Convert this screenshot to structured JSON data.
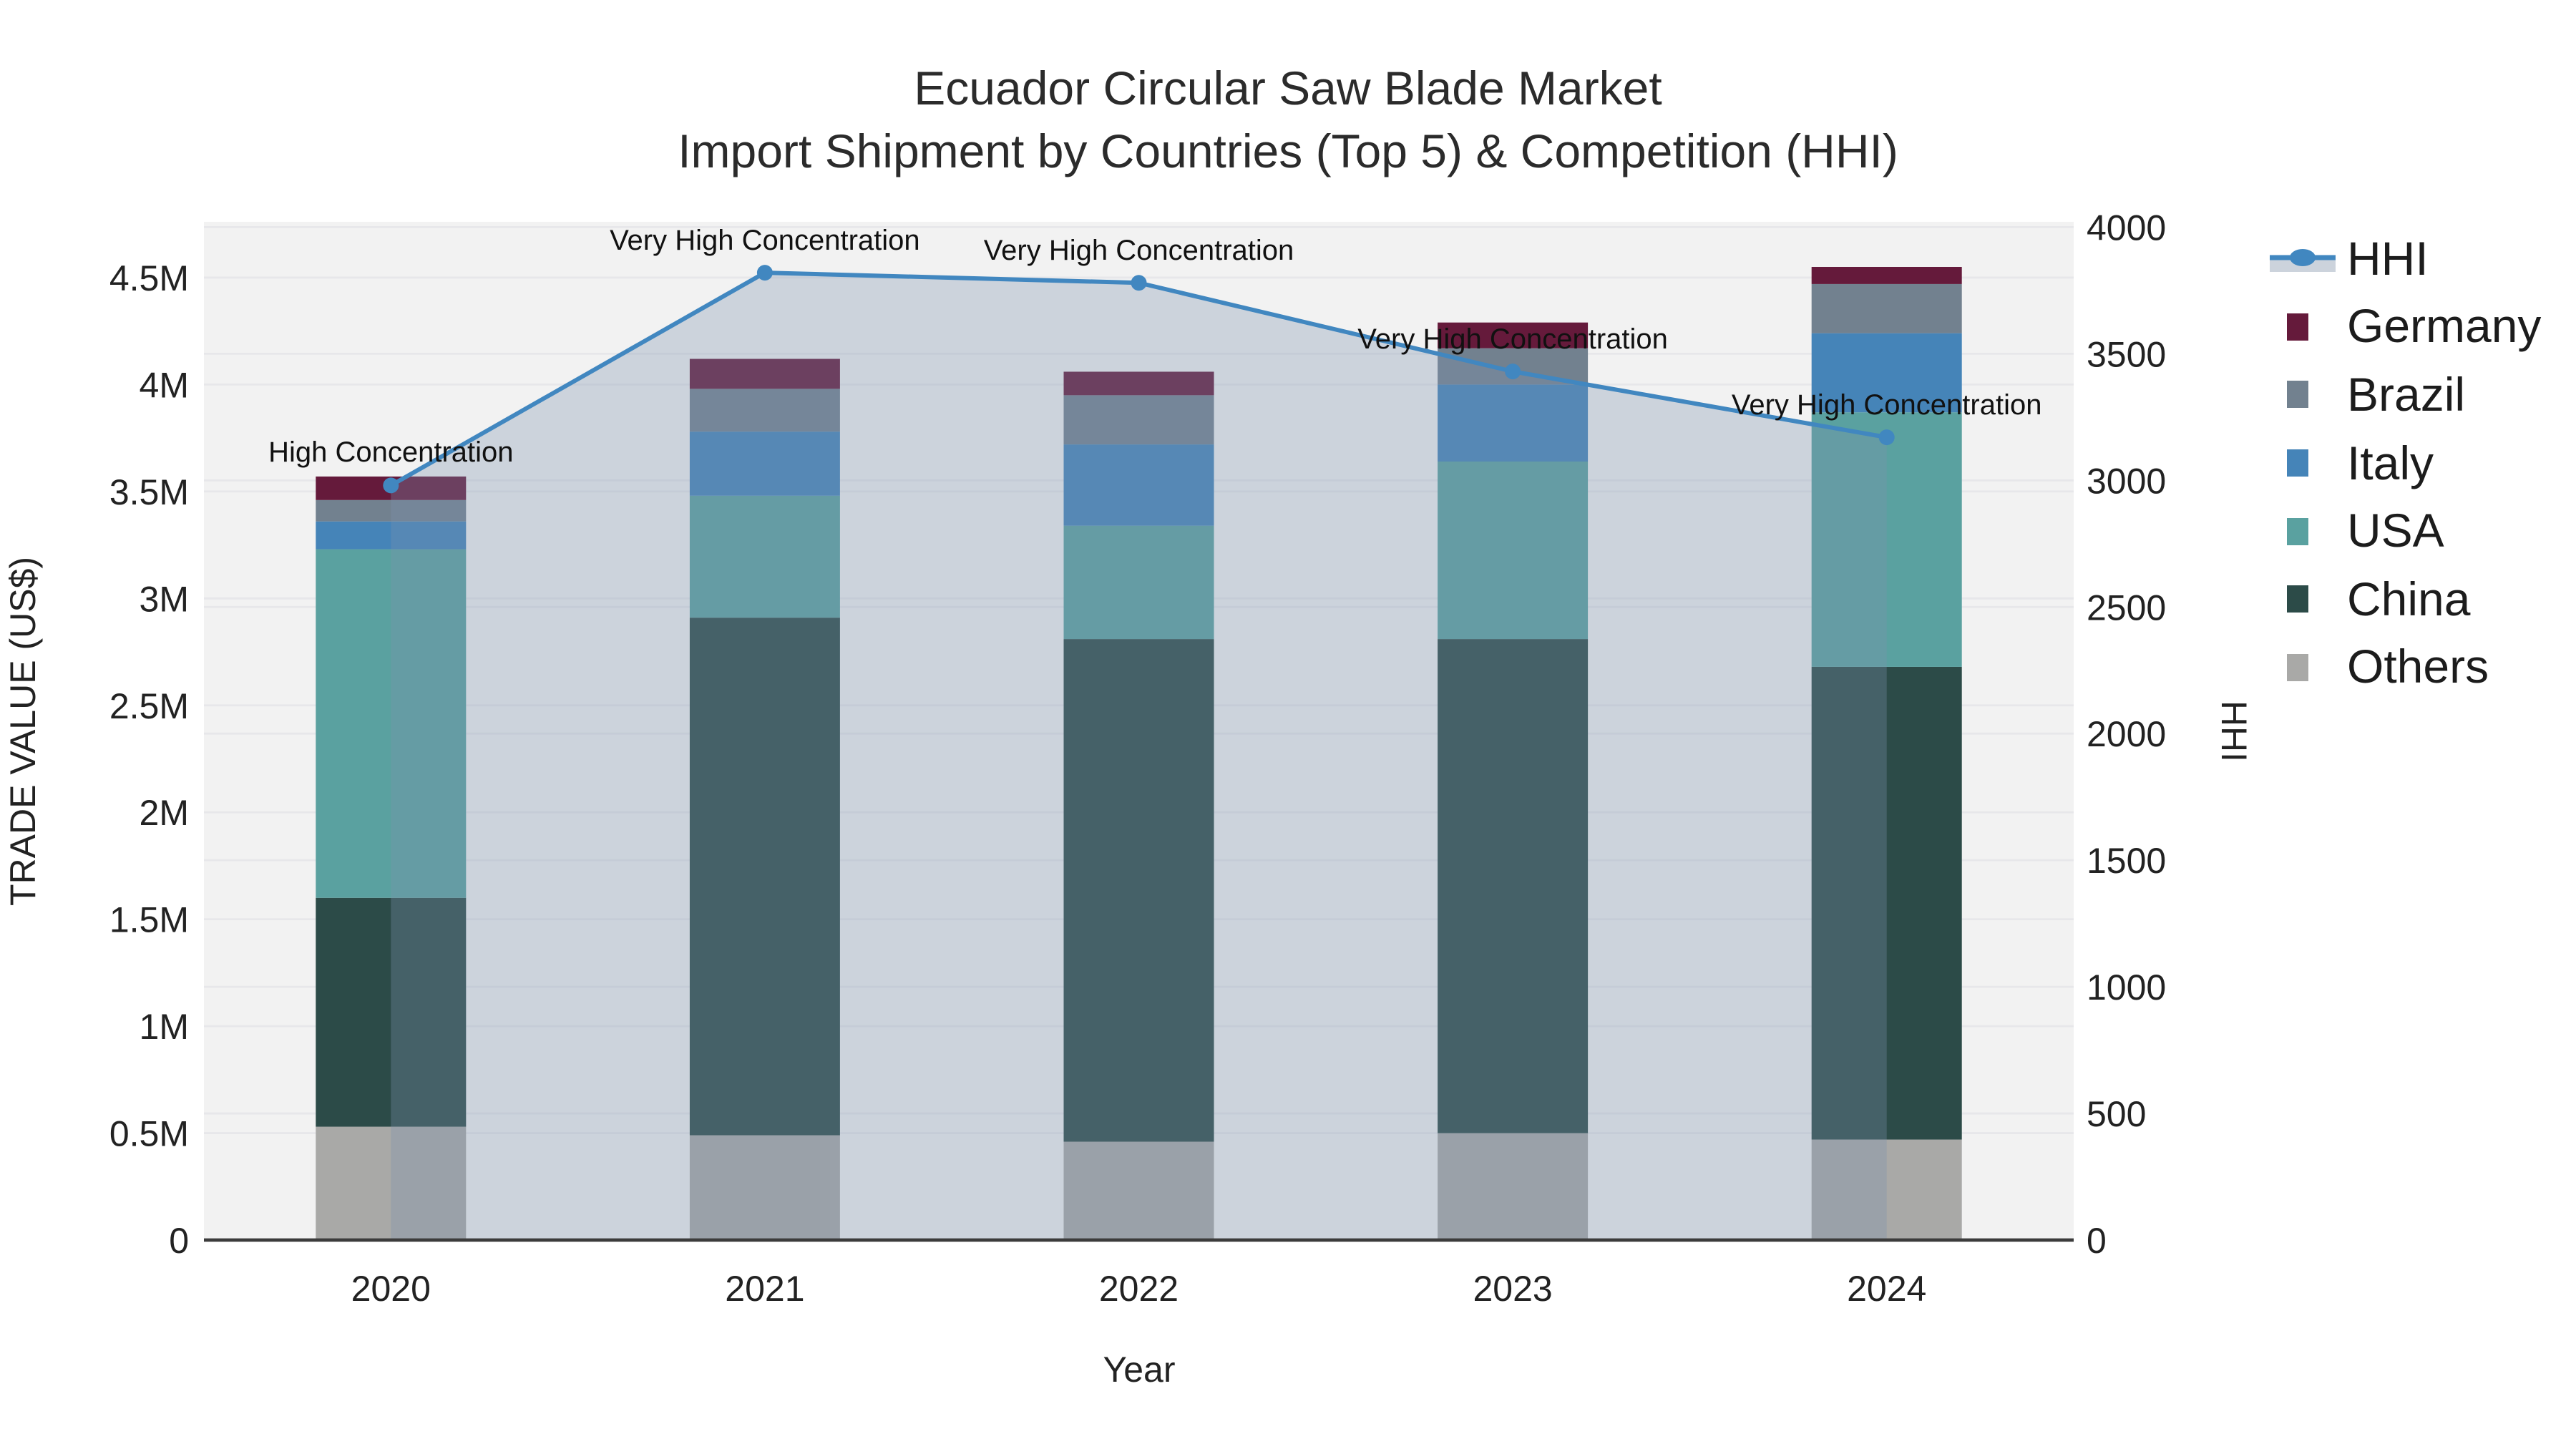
{
  "title": {
    "line1": "Ecuador Circular Saw Blade Market",
    "line2": "Import Shipment by Countries (Top 5) & Competition (HHI)"
  },
  "chart_data": {
    "type": "stacked-bar+line",
    "title": "Ecuador Circular Saw Blade Market — Import Shipment by Countries (Top 5) & Competition (HHI)",
    "x_axis": {
      "title": "Year",
      "categories": [
        "2020",
        "2021",
        "2022",
        "2023",
        "2024"
      ]
    },
    "left_axis": {
      "title": "TRADE VALUE (US$)",
      "unit": "millions of US$",
      "tick_values": [
        0,
        0.5,
        1,
        1.5,
        2,
        2.5,
        3,
        3.5,
        4,
        4.5
      ],
      "tick_labels": [
        "0",
        "0.5M",
        "1M",
        "1.5M",
        "2M",
        "2.5M",
        "3M",
        "3.5M",
        "4M",
        "4.5M"
      ],
      "range": [
        0,
        4.76
      ],
      "grid": true
    },
    "right_axis": {
      "title": "HHI",
      "tick_values": [
        0,
        500,
        1000,
        1500,
        2000,
        2500,
        3000,
        3500,
        4000
      ],
      "range": [
        0,
        4020
      ],
      "grid": true
    },
    "bar_series_bottom_to_top": [
      {
        "name": "Others",
        "color": "#a9a9a7",
        "values": [
          0.53,
          0.49,
          0.46,
          0.5,
          0.47
        ]
      },
      {
        "name": "China",
        "color": "#2c4b48",
        "values": [
          1.07,
          2.42,
          2.35,
          2.31,
          2.21
        ]
      },
      {
        "name": "USA",
        "color": "#5aa1a0",
        "values": [
          1.63,
          0.57,
          0.53,
          0.83,
          1.19
        ]
      },
      {
        "name": "Italy",
        "color": "#4584b8",
        "values": [
          0.13,
          0.3,
          0.38,
          0.36,
          0.37
        ]
      },
      {
        "name": "Brazil",
        "color": "#72818f",
        "values": [
          0.1,
          0.2,
          0.23,
          0.17,
          0.23
        ]
      },
      {
        "name": "Germany",
        "color": "#651a3b",
        "values": [
          0.11,
          0.14,
          0.11,
          0.12,
          0.08
        ]
      }
    ],
    "hhi_line": {
      "name": "HHI",
      "values": [
        2980,
        3820,
        3780,
        3430,
        3170
      ],
      "line_color": "#4187c0",
      "area_fill": "rgba(125,145,175,0.32)",
      "legend_band_color": "#ccd3dc"
    },
    "annotations": [
      {
        "year": "2020",
        "text": "High Concentration"
      },
      {
        "year": "2021",
        "text": "Very High Concentration"
      },
      {
        "year": "2022",
        "text": "Very High Concentration"
      },
      {
        "year": "2023",
        "text": "Very High Concentration"
      },
      {
        "year": "2024",
        "text": "Very High Concentration"
      }
    ],
    "legend_order": [
      "HHI",
      "Germany",
      "Brazil",
      "Italy",
      "USA",
      "China",
      "Others"
    ],
    "layout_hints": {
      "plot_bg": "#f2f2f2",
      "grid_color": "#e7e7ea",
      "axis_line_color": "#3c3c3c",
      "legend_position": "right-top",
      "area_fill_span": "from 2020 center to 2024 center"
    }
  }
}
